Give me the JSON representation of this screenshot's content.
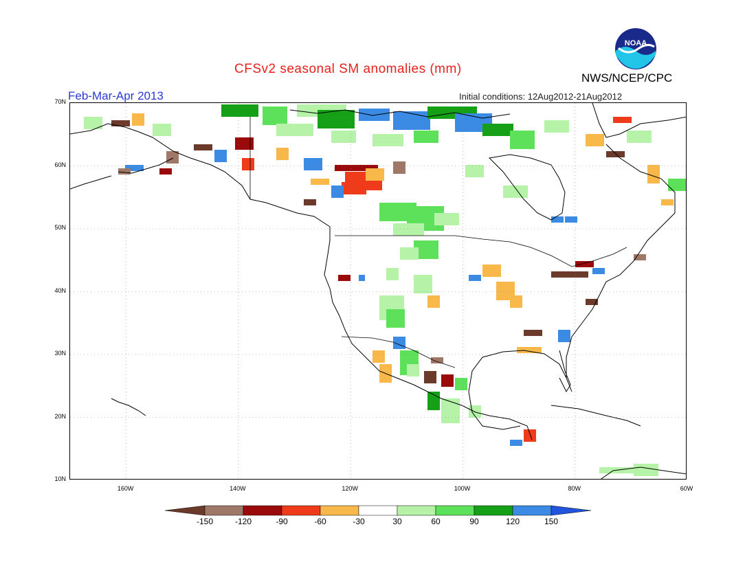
{
  "header": {
    "title": "CFSv2 seasonal SM anomalies (mm)",
    "period": "Feb-Mar-Apr 2013",
    "initial_conditions": "Initial conditions: 12Aug2012-21Aug2012",
    "agency": "NWS/NCEP/CPC",
    "logo_text": "NOAA"
  },
  "map": {
    "lat_labels": [
      "70N",
      "60N",
      "50N",
      "40N",
      "30N",
      "20N",
      "10N"
    ],
    "lon_labels": [
      "160W",
      "140W",
      "120W",
      "100W",
      "80W",
      "60W"
    ],
    "lat_range": [
      10,
      70
    ],
    "lon_range": [
      -170,
      -60
    ],
    "gridlines": "dotted"
  },
  "colorbar": {
    "labels": [
      "-150",
      "-120",
      "-90",
      "-60",
      "-30",
      "30",
      "60",
      "90",
      "120",
      "150"
    ],
    "colors": [
      "#6b3a2a",
      "#a07868",
      "#9a0a0a",
      "#ef3b1a",
      "#f9b94a",
      "#ffffff",
      "#b6f3a8",
      "#5de05a",
      "#16a018",
      "#3b8be5",
      "#2255dd"
    ]
  },
  "anomaly_colors": {
    "brown": "#6b3a2a",
    "taupe": "#a07868",
    "darkred": "#9a0a0a",
    "red": "#ef3b1a",
    "orange": "#f9b94a",
    "lightgreen": "#b6f3a8",
    "green": "#5de05a",
    "darkgreen": "#16a018",
    "blue": "#3b8be5"
  }
}
